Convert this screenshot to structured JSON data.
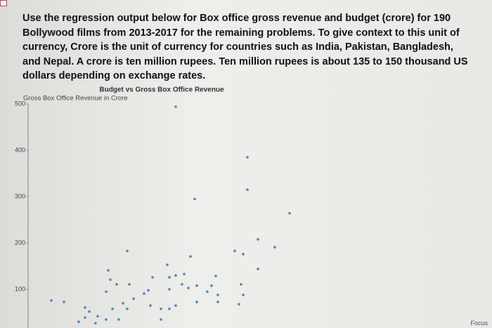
{
  "document": {
    "paragraph": "Use the regression output below for Box office gross revenue and budget (crore) for 190 Bollywood films from 2013-2017 for the remaining problems.  To give context to this unit of currency, Crore is the unit of currency for countries such as India, Pakistan, Bangladesh, and Nepal.  A crore is ten million rupees.  Ten million rupees is about 135 to 150 thousand US dollars depending on exchange rates.",
    "focus_button": "Focus"
  },
  "chart_data": {
    "type": "scatter",
    "title": "Budget vs Gross Box Office Revenue",
    "y_label": "Gross Box Office Revenue in Crore",
    "color": "#4a86c8",
    "x": [
      70,
      104,
      104,
      79,
      124,
      109,
      117,
      47,
      98,
      102,
      77,
      66,
      109,
      38,
      67,
      70,
      74,
      89,
      39,
      42,
      48,
      59,
      57,
      55,
      67,
      73,
      76,
      80,
      87,
      85,
      101,
      102,
      100,
      37,
      11,
      17,
      27,
      29,
      33,
      40,
      45,
      47,
      37,
      43,
      50,
      58,
      63,
      67,
      70,
      63,
      80,
      90,
      90,
      27,
      24,
      32
    ],
    "values": [
      494,
      385,
      315,
      295,
      264,
      208,
      191,
      183,
      183,
      176,
      171,
      153,
      144,
      141,
      126,
      130,
      133,
      129,
      121,
      111,
      111,
      126,
      98,
      91,
      100,
      111,
      103,
      108,
      108,
      95,
      111,
      88,
      68,
      95,
      76,
      73,
      61,
      52,
      42,
      58,
      70,
      58,
      35,
      35,
      80,
      65,
      58,
      58,
      65,
      35,
      73,
      73,
      88,
      39,
      30,
      27
    ],
    "xlim": [
      0,
      200
    ],
    "ylim": [
      0,
      500
    ],
    "yticks": [
      100,
      200,
      300,
      400,
      500
    ]
  }
}
